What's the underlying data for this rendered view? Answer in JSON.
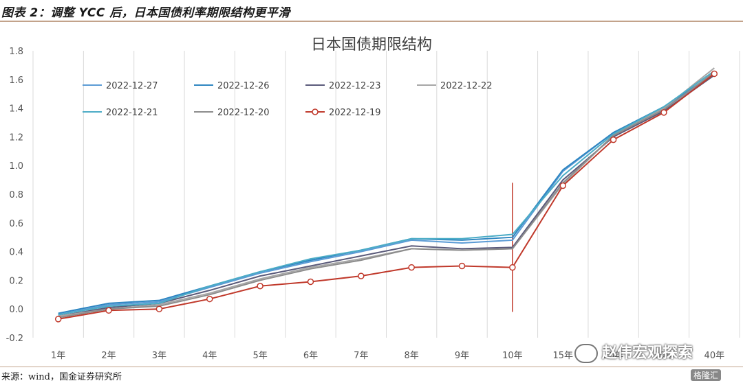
{
  "figure": {
    "title": "图表 2：调整 YCC 后，日本国债利率期限结构更平滑",
    "source": "来源：wind，国金证券研究所",
    "watermark": "赵伟宏观探索",
    "brand": "格隆汇"
  },
  "chart_data": {
    "type": "line",
    "title": "日本国债期限结构",
    "xlabel": "",
    "ylabel": "",
    "categories": [
      "1年",
      "2年",
      "3年",
      "4年",
      "5年",
      "6年",
      "7年",
      "8年",
      "9年",
      "10年",
      "15年",
      "20年",
      "30年",
      "40年"
    ],
    "ylim": [
      -0.2,
      1.8
    ],
    "yticks": [
      "-0.2",
      "0.0",
      "0.2",
      "0.4",
      "0.6",
      "0.8",
      "1.0",
      "1.2",
      "1.4",
      "1.6",
      "1.8"
    ],
    "grid": "vertical",
    "legend_position": "top-left",
    "annotation": {
      "type": "vertical-line",
      "at": "10年",
      "color": "#c0392b"
    },
    "series": [
      {
        "name": "2022-12-27",
        "color": "#5b9bd5",
        "marker": "none",
        "values": [
          -0.04,
          0.03,
          0.05,
          0.15,
          0.25,
          0.33,
          0.4,
          0.48,
          0.46,
          0.48,
          0.96,
          1.23,
          1.4,
          1.63
        ]
      },
      {
        "name": "2022-12-26",
        "color": "#2e86c1",
        "marker": "none",
        "values": [
          -0.03,
          0.04,
          0.06,
          0.16,
          0.26,
          0.34,
          0.41,
          0.49,
          0.48,
          0.5,
          0.97,
          1.23,
          1.41,
          1.64
        ]
      },
      {
        "name": "2022-12-23",
        "color": "#5a5a7a",
        "marker": "none",
        "values": [
          -0.05,
          0.01,
          0.04,
          0.13,
          0.23,
          0.3,
          0.37,
          0.44,
          0.42,
          0.43,
          0.9,
          1.2,
          1.38,
          1.63
        ]
      },
      {
        "name": "2022-12-22",
        "color": "#a6a6a6",
        "marker": "none",
        "values": [
          -0.05,
          0.0,
          0.03,
          0.11,
          0.21,
          0.29,
          0.35,
          0.42,
          0.41,
          0.42,
          0.87,
          1.21,
          1.4,
          1.68
        ]
      },
      {
        "name": "2022-12-21",
        "color": "#4bacc6",
        "marker": "none",
        "values": [
          -0.04,
          0.02,
          0.04,
          0.16,
          0.26,
          0.35,
          0.41,
          0.49,
          0.49,
          0.52,
          0.93,
          1.22,
          1.41,
          1.66
        ]
      },
      {
        "name": "2022-12-20",
        "color": "#8c8c8c",
        "marker": "none",
        "values": [
          -0.06,
          0.0,
          0.02,
          0.1,
          0.2,
          0.28,
          0.34,
          0.42,
          0.41,
          0.42,
          0.88,
          1.21,
          1.39,
          1.65
        ]
      },
      {
        "name": "2022-12-19",
        "color": "#c0392b",
        "marker": "circle",
        "values": [
          -0.07,
          -0.01,
          0.0,
          0.07,
          0.16,
          0.19,
          0.23,
          0.29,
          0.3,
          0.29,
          0.86,
          1.18,
          1.37,
          1.64
        ]
      }
    ]
  }
}
